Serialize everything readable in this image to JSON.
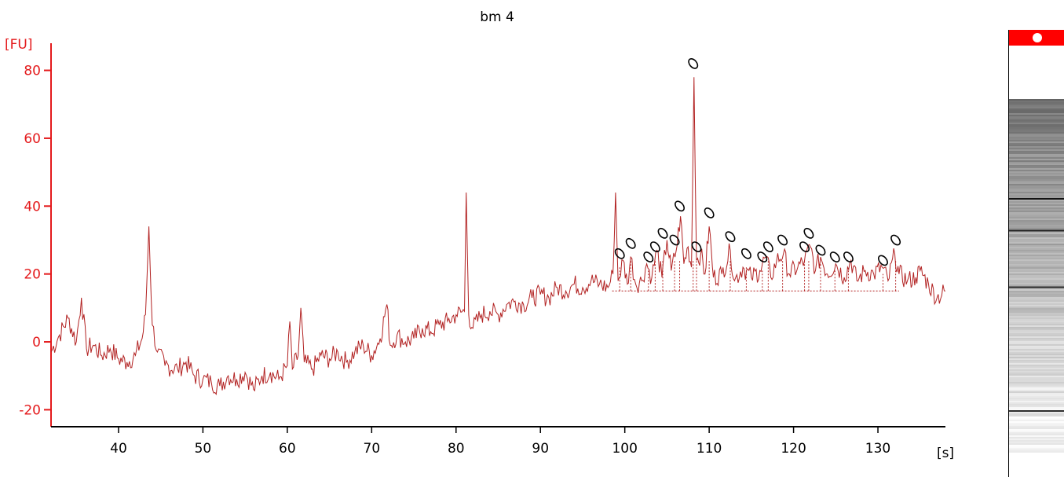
{
  "title": "bm 4",
  "colors": {
    "axis": "#e41a1c",
    "trace": "#b22222",
    "marker": "#ff0000",
    "peak_mark": "#000000"
  },
  "chart_data": {
    "type": "line",
    "title": "bm 4",
    "ylabel": "[FU]",
    "xlabel": "[s]",
    "xlim": [
      32,
      138
    ],
    "ylim": [
      -25,
      88
    ],
    "x_ticks": [
      "40",
      "50",
      "60",
      "70",
      "80",
      "90",
      "100",
      "110",
      "120",
      "130"
    ],
    "y_ticks": [
      "-20",
      "0",
      "20",
      "40",
      "60",
      "80"
    ],
    "grid": false,
    "legend": "none",
    "peak_marker_symbol": "0",
    "series": [
      {
        "points": [
          [
            32,
            -3
          ],
          [
            33,
            2
          ],
          [
            34,
            7
          ],
          [
            35,
            0
          ],
          [
            35.6,
            13
          ],
          [
            36.2,
            -2
          ],
          [
            37,
            -1
          ],
          [
            38,
            -4
          ],
          [
            39,
            -2
          ],
          [
            40,
            -5
          ],
          [
            41,
            -6
          ],
          [
            42,
            -4
          ],
          [
            42.8,
            1
          ],
          [
            43.2,
            8
          ],
          [
            43.6,
            34
          ],
          [
            44,
            5
          ],
          [
            44.6,
            -3
          ],
          [
            45.5,
            -7
          ],
          [
            47,
            -8
          ],
          [
            48,
            -6
          ],
          [
            49,
            -10
          ],
          [
            50,
            -11
          ],
          [
            51,
            -12
          ],
          [
            52,
            -13
          ],
          [
            53,
            -10
          ],
          [
            54,
            -11
          ],
          [
            55,
            -9
          ],
          [
            56,
            -14
          ],
          [
            57,
            -10
          ],
          [
            58,
            -9
          ],
          [
            59,
            -11
          ],
          [
            60,
            -7
          ],
          [
            60.3,
            6
          ],
          [
            60.6,
            -8
          ],
          [
            61.3,
            -4
          ],
          [
            61.6,
            10
          ],
          [
            62,
            -6
          ],
          [
            63,
            -8
          ],
          [
            64,
            -4
          ],
          [
            65,
            -5
          ],
          [
            66,
            -3
          ],
          [
            67,
            -6
          ],
          [
            68,
            -3
          ],
          [
            69,
            -1
          ],
          [
            70,
            -4
          ],
          [
            71,
            1
          ],
          [
            71.8,
            11
          ],
          [
            72.2,
            -1
          ],
          [
            73,
            2
          ],
          [
            74,
            0
          ],
          [
            75,
            1
          ],
          [
            76,
            4
          ],
          [
            77,
            3
          ],
          [
            78,
            5
          ],
          [
            79,
            6
          ],
          [
            80,
            8
          ],
          [
            81,
            9
          ],
          [
            81.2,
            44
          ],
          [
            81.5,
            8
          ],
          [
            82,
            4
          ],
          [
            83,
            8
          ],
          [
            84,
            9
          ],
          [
            85,
            8
          ],
          [
            86,
            11
          ],
          [
            87,
            12
          ],
          [
            88,
            11
          ],
          [
            89,
            13
          ],
          [
            90,
            14
          ],
          [
            91,
            13
          ],
          [
            92,
            16
          ],
          [
            93,
            15
          ],
          [
            94,
            17
          ],
          [
            95,
            16
          ],
          [
            96,
            18
          ],
          [
            97,
            17
          ],
          [
            98,
            16
          ],
          [
            98.6,
            20
          ],
          [
            98.9,
            44
          ],
          [
            99.2,
            18
          ],
          [
            99.8,
            24
          ],
          [
            100.3,
            17
          ],
          [
            100.7,
            25
          ],
          [
            101.3,
            17
          ],
          [
            102,
            18
          ],
          [
            102.6,
            23
          ],
          [
            103.2,
            19
          ],
          [
            103.8,
            27
          ],
          [
            104.4,
            19
          ],
          [
            105,
            30
          ],
          [
            105.5,
            21
          ],
          [
            106.1,
            27
          ],
          [
            106.6,
            37
          ],
          [
            107,
            23
          ],
          [
            107.5,
            28
          ],
          [
            107.9,
            22
          ],
          [
            108.2,
            78
          ],
          [
            108.5,
            24
          ],
          [
            109,
            26
          ],
          [
            109.5,
            20
          ],
          [
            110,
            34
          ],
          [
            110.5,
            19
          ],
          [
            111.5,
            20
          ],
          [
            112.5,
            27
          ],
          [
            113,
            18
          ],
          [
            114,
            22
          ],
          [
            115,
            19
          ],
          [
            116,
            21
          ],
          [
            116.7,
            25
          ],
          [
            117.3,
            19
          ],
          [
            118,
            24
          ],
          [
            118.8,
            26
          ],
          [
            119.5,
            20
          ],
          [
            120.5,
            22
          ],
          [
            121.3,
            24
          ],
          [
            122,
            28
          ],
          [
            122.6,
            21
          ],
          [
            123.2,
            25
          ],
          [
            124,
            20
          ],
          [
            125,
            23
          ],
          [
            126,
            19
          ],
          [
            126.8,
            24
          ],
          [
            127.5,
            18
          ],
          [
            128.5,
            21
          ],
          [
            129.5,
            20
          ],
          [
            130.5,
            22
          ],
          [
            131.2,
            18
          ],
          [
            132,
            26
          ],
          [
            132.5,
            20
          ],
          [
            133.5,
            18
          ],
          [
            134.5,
            19
          ],
          [
            135,
            21
          ],
          [
            136,
            17
          ],
          [
            137,
            13
          ],
          [
            138,
            15
          ]
        ]
      }
    ],
    "peak_labels": [
      {
        "x": 99.4,
        "y": 26
      },
      {
        "x": 100.7,
        "y": 29
      },
      {
        "x": 102.8,
        "y": 25
      },
      {
        "x": 103.6,
        "y": 28
      },
      {
        "x": 104.5,
        "y": 32
      },
      {
        "x": 105.9,
        "y": 30
      },
      {
        "x": 106.5,
        "y": 40
      },
      {
        "x": 108.1,
        "y": 82
      },
      {
        "x": 108.5,
        "y": 28
      },
      {
        "x": 110,
        "y": 38
      },
      {
        "x": 112.5,
        "y": 31
      },
      {
        "x": 114.4,
        "y": 26
      },
      {
        "x": 116.3,
        "y": 25
      },
      {
        "x": 117,
        "y": 28
      },
      {
        "x": 118.7,
        "y": 30
      },
      {
        "x": 121.3,
        "y": 28
      },
      {
        "x": 121.8,
        "y": 32
      },
      {
        "x": 123.2,
        "y": 27
      },
      {
        "x": 124.9,
        "y": 25
      },
      {
        "x": 126.5,
        "y": 25
      },
      {
        "x": 130.6,
        "y": 24
      },
      {
        "x": 132.1,
        "y": 30
      }
    ]
  },
  "gel": {
    "bands": [
      {
        "pos": 0.28,
        "intensity": 0.9
      },
      {
        "pos": 0.37,
        "intensity": 0.7
      },
      {
        "pos": 0.53,
        "intensity": 0.6
      },
      {
        "pos": 0.88,
        "intensity": 0.55
      }
    ]
  }
}
